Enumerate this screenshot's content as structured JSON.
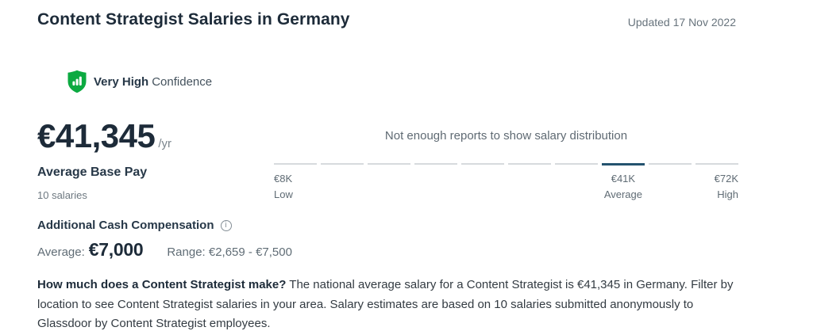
{
  "header": {
    "title": "Content Strategist Salaries in Germany",
    "updated": "Updated 17 Nov 2022"
  },
  "confidence": {
    "level": "Very High",
    "label": "Confidence",
    "badge_color": "#0caa41"
  },
  "base_pay": {
    "amount": "€41,345",
    "period": "/yr",
    "label": "Average Base Pay",
    "sample": "10 salaries"
  },
  "chart_data": {
    "type": "salary-distribution",
    "title": "",
    "message": "Not enough reports to show salary distribution",
    "segments": 10,
    "highlighted_segment_index": 7,
    "labels": {
      "low": {
        "value": "€8K",
        "label": "Low"
      },
      "average": {
        "value": "€41K",
        "label": "Average"
      },
      "high": {
        "value": "€72K",
        "label": "High"
      }
    },
    "colors": {
      "tick_inactive": "#d7dadd",
      "tick_active": "#24536f"
    }
  },
  "additional_cash": {
    "title": "Additional Cash Compensation",
    "info_glyph": "i",
    "average_label": "Average:",
    "average_value": "€7,000",
    "range_text": "Range: €2,659 - €7,500"
  },
  "description": {
    "lead": "How much does a Content Strategist make?",
    "body": " The national average salary for a Content Strategist is €41,345 in Germany. Filter by location to see Content Strategist salaries in your area. Salary estimates are based on 10 salaries submitted anonymously to Glassdoor by Content Strategist employees."
  }
}
